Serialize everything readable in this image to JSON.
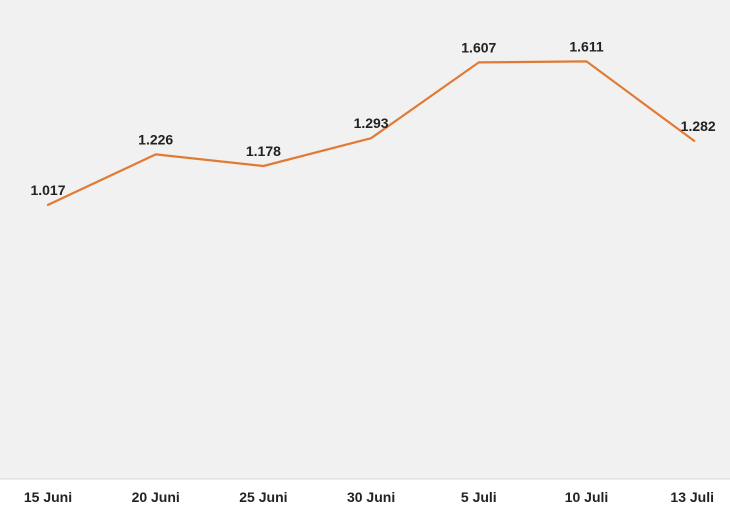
{
  "colors": {
    "plot_background": "#f2f1f1",
    "page_background": "#ffffff",
    "line": "#e07b35",
    "text": "#222222",
    "axis_line": "#d9d9d9"
  },
  "chart_data": {
    "type": "line",
    "title": "",
    "xlabel": "",
    "ylabel": "",
    "categories": [
      "15 Juni",
      "20 Juni",
      "25 Juni",
      "30 Juni",
      "5 Juli",
      "10 Juli",
      "13 Juli"
    ],
    "series": [
      {
        "values": [
          1017,
          1226,
          1178,
          1293,
          1607,
          1611,
          1282
        ],
        "labels": [
          "1.017",
          "1.226",
          "1.178",
          "1.293",
          "1.607",
          "1.611",
          "1.282"
        ]
      }
    ],
    "ylim": [
      0,
      1700
    ],
    "grid": false,
    "legend": "none",
    "y_axis_visible": false
  }
}
